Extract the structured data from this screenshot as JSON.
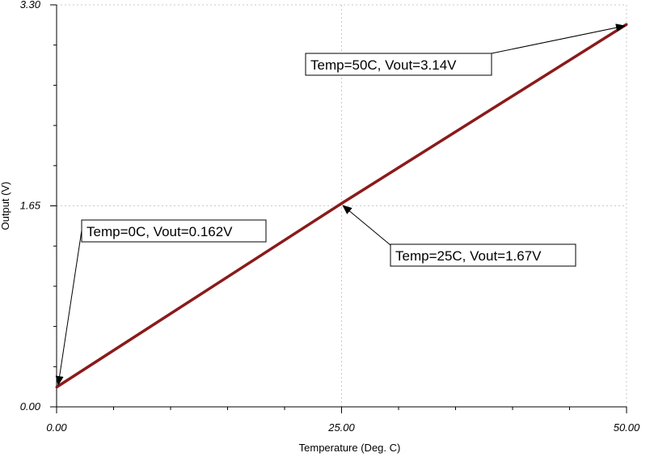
{
  "chart_data": {
    "type": "line",
    "xlabel": "Temperature (Deg. C)",
    "ylabel": "Output (V)",
    "xlim": [
      0,
      50
    ],
    "ylim": [
      0,
      3.3
    ],
    "x_ticks": [
      0,
      25,
      50
    ],
    "x_tick_labels": [
      "0.00",
      "25.00",
      "50.00"
    ],
    "y_ticks": [
      0,
      1.65,
      3.3
    ],
    "y_tick_labels": [
      "0.00",
      "1.65",
      "3.30"
    ],
    "grid": "dotted at major ticks",
    "series": [
      {
        "x": [
          0,
          25,
          50
        ],
        "y": [
          0.162,
          1.67,
          3.14
        ],
        "color": "#8b1a1a"
      }
    ],
    "annotations": [
      {
        "text": "Temp=0C, Vout=0.162V",
        "x": 0,
        "y": 0.162
      },
      {
        "text": "Temp=25C, Vout=1.67V",
        "x": 25,
        "y": 1.67
      },
      {
        "text": "Temp=50C, Vout=3.14V",
        "x": 50,
        "y": 3.14
      }
    ]
  }
}
